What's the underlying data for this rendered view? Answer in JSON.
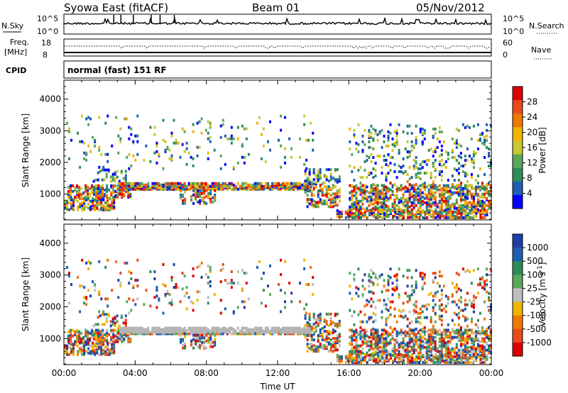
{
  "header": {
    "station": "Syowa East (fitACF)",
    "beam": "Beam 01",
    "date": "05/Nov/2012"
  },
  "top_panels": {
    "nsky_label": "N.Sky",
    "nsearch_label": "N.Search",
    "nsky_ticks": [
      "10^5",
      "10^0"
    ],
    "nsearch_ticks": [
      "10^5",
      "10^0"
    ],
    "freq_label": "Freq.",
    "freq_unit": "[MHz]",
    "freq_ticks": [
      "18",
      "8"
    ],
    "nave_label": "Nave",
    "nave_ticks": [
      "60",
      "0"
    ],
    "cpid_label": "CPID",
    "cpid_value": "normal (fast) 151 RF"
  },
  "colors": {
    "power_scale": [
      "#0000ff",
      "#1f5fb0",
      "#2e8b57",
      "#5aa85a",
      "#c8c832",
      "#f0b400",
      "#f07800",
      "#e84a1a",
      "#dc0000"
    ],
    "velocity_scale": [
      "#dc0000",
      "#e84a1a",
      "#f07800",
      "#f0b400",
      "#bebebe",
      "#5aa85a",
      "#2e8b57",
      "#1f5fb0",
      "#1f3fa8"
    ],
    "ground_scatter": "#b4b4b4"
  },
  "chart_data": [
    {
      "type": "heatmap",
      "title": "Power",
      "ylabel": "Slant Range [km]",
      "xlabel": "",
      "x_ticks": [
        "00:00",
        "04:00",
        "08:00",
        "12:00",
        "16:00",
        "20:00",
        "00:00"
      ],
      "x_range_hours": [
        0,
        24
      ],
      "y_ticks": [
        1000,
        2000,
        3000,
        4000
      ],
      "ylim": [
        180,
        4600
      ],
      "colorbar_label": "Power [dB]",
      "colorbar_ticks": [
        "28",
        "24",
        "20",
        "16",
        "12",
        "8",
        "4"
      ],
      "color_range": [
        0,
        30
      ]
    },
    {
      "type": "heatmap",
      "title": "Velocity",
      "ylabel": "Slant Range [km]",
      "xlabel": "Time UT",
      "x_ticks": [
        "00:00",
        "04:00",
        "08:00",
        "12:00",
        "16:00",
        "20:00",
        "00:00"
      ],
      "x_range_hours": [
        0,
        24
      ],
      "y_ticks": [
        1000,
        2000,
        3000,
        4000
      ],
      "ylim": [
        180,
        4600
      ],
      "colorbar_label": "Velocity [m s^-1]",
      "colorbar_ticks": [
        "1000",
        "500",
        "100",
        "25",
        "-25",
        "-100",
        "-500",
        "-1000"
      ],
      "color_range": [
        -1200,
        1200
      ]
    }
  ]
}
